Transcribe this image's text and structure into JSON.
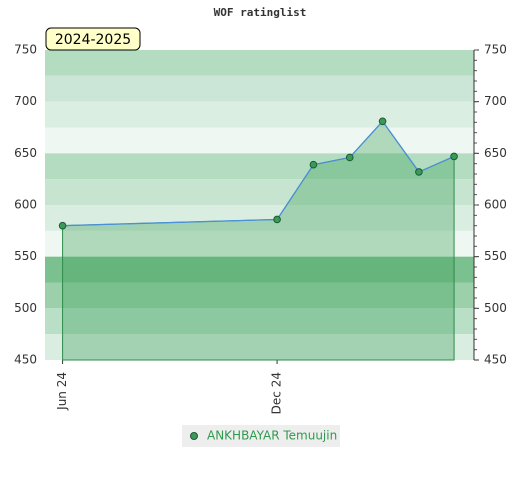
{
  "chart_data": {
    "type": "area-line",
    "title": "WOF ratinglist",
    "annotation": "2024-2025",
    "x": [
      "2024-06-01",
      "2024-12-01",
      "2025-01-01",
      "2025-02-01",
      "2025-03-01",
      "2025-04-01",
      "2025-05-01"
    ],
    "xlim": [
      "2024-05-17",
      "2025-05-18"
    ],
    "xticks": [
      {
        "value": "2024-06-01",
        "label": "Jun 24"
      },
      {
        "value": "2024-12-01",
        "label": "Dec 24"
      }
    ],
    "series": [
      {
        "name": "ANKHBAYAR Temuujin",
        "color": "#4a8fd8",
        "values": [
          580,
          586,
          639,
          646,
          681,
          632,
          647
        ]
      }
    ],
    "ylim": [
      450,
      750
    ],
    "yticks": [
      450,
      500,
      550,
      600,
      650,
      700,
      750
    ],
    "grid": true
  }
}
